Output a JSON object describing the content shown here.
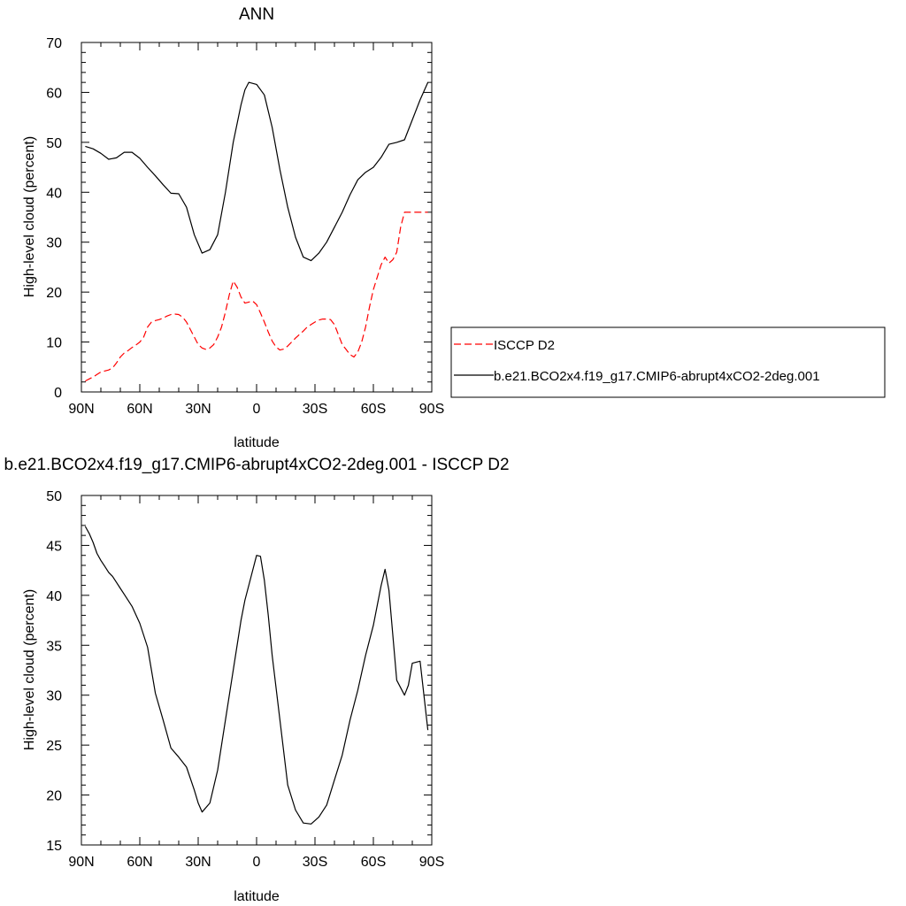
{
  "colors": {
    "model": "#000000",
    "obs": "#ff0000",
    "axis": "#000000",
    "background": "#ffffff"
  },
  "chart_data": [
    {
      "type": "line",
      "title": "ANN",
      "xlabel": "latitude",
      "ylabel": "High-level cloud (percent)",
      "xlim": [
        90,
        -90
      ],
      "ylim": [
        0,
        70
      ],
      "xticks": [
        90,
        60,
        30,
        0,
        -30,
        -60,
        -90
      ],
      "xticklabels": [
        "90N",
        "60N",
        "30N",
        "0",
        "30S",
        "60S",
        "90S"
      ],
      "yticks": [
        0,
        10,
        20,
        30,
        40,
        50,
        60,
        70
      ],
      "yticklabels": [
        "0",
        "10",
        "20",
        "30",
        "40",
        "50",
        "60",
        "70"
      ],
      "grid": false,
      "legend": {
        "placement": "right",
        "entries": [
          "ISCCP D2",
          "b.e21.BCO2x4.f19_g17.CMIP6-abrupt4xCO2-2deg.001"
        ]
      },
      "series": [
        {
          "name": "ISCCP D2",
          "style": "dashed",
          "color": "#ff0000",
          "x": [
            88,
            86,
            84,
            82,
            80,
            78,
            76,
            74,
            72,
            70,
            68,
            66,
            64,
            62,
            60,
            58,
            56,
            54,
            52,
            50,
            48,
            46,
            44,
            42,
            40,
            38,
            36,
            34,
            32,
            30,
            28,
            26,
            24,
            22,
            20,
            18,
            16,
            14,
            12,
            10,
            8,
            6,
            4,
            2,
            0,
            -2,
            -4,
            -6,
            -8,
            -10,
            -12,
            -14,
            -16,
            -18,
            -20,
            -22,
            -24,
            -26,
            -28,
            -30,
            -32,
            -34,
            -36,
            -38,
            -40,
            -42,
            -44,
            -46,
            -48,
            -50,
            -52,
            -54,
            -56,
            -58,
            -60,
            -62,
            -64,
            -66,
            -68,
            -70,
            -72,
            -74,
            -76,
            -78,
            -80,
            -82,
            -84,
            -86,
            -88
          ],
          "y": [
            2.2,
            2.6,
            3.0,
            3.5,
            4.0,
            4.2,
            4.4,
            4.8,
            5.8,
            7.0,
            7.8,
            8.3,
            8.9,
            9.4,
            10.0,
            11.0,
            13.0,
            14.0,
            14.3,
            14.5,
            14.8,
            15.2,
            15.5,
            15.6,
            15.5,
            15.0,
            14.0,
            12.5,
            11.0,
            9.5,
            8.8,
            8.5,
            8.8,
            9.5,
            11.0,
            13.0,
            16.0,
            19.5,
            22.2,
            21.0,
            19.0,
            17.8,
            18.0,
            18.2,
            17.5,
            15.8,
            14.0,
            12.0,
            10.2,
            9.0,
            8.4,
            8.6,
            9.2,
            10.0,
            10.8,
            11.5,
            12.2,
            13.0,
            13.5,
            14.0,
            14.4,
            14.6,
            14.6,
            14.5,
            13.5,
            11.5,
            9.5,
            8.5,
            7.5,
            7.0,
            8.0,
            10.0,
            13.0,
            17.0,
            20.5,
            23.0,
            25.5,
            27.0,
            25.8,
            26.5,
            28.0,
            33.0,
            36.0,
            36.0,
            36.0,
            36.0,
            36.0,
            36.0,
            36.0
          ]
        },
        {
          "name": "b.e21.BCO2x4.f19_g17.CMIP6-abrupt4xCO2-2deg.001",
          "style": "solid",
          "color": "#000000",
          "x": [
            88,
            84,
            80,
            76,
            72,
            68,
            64,
            60,
            56,
            52,
            48,
            44,
            40,
            36,
            32,
            28,
            24,
            20,
            16,
            12,
            8,
            6,
            4,
            0,
            -4,
            -8,
            -12,
            -16,
            -20,
            -24,
            -28,
            -32,
            -36,
            -40,
            -44,
            -48,
            -52,
            -56,
            -60,
            -64,
            -68,
            -72,
            -76,
            -80,
            -84,
            -88
          ],
          "y": [
            49.2,
            48.7,
            47.8,
            46.6,
            46.9,
            48.0,
            48.0,
            46.8,
            45.0,
            43.3,
            41.5,
            39.8,
            39.7,
            37.0,
            31.5,
            27.8,
            28.5,
            31.5,
            40.0,
            50.0,
            57.5,
            60.5,
            62.0,
            61.6,
            59.5,
            53.0,
            44.5,
            37.0,
            31.0,
            27.0,
            26.3,
            27.8,
            30.0,
            33.0,
            36.0,
            39.5,
            42.5,
            44.0,
            45.0,
            47.0,
            49.6,
            50.0,
            50.5,
            54.5,
            58.5,
            62.0
          ]
        }
      ]
    },
    {
      "type": "line",
      "title": "b.e21.BCO2x4.f19_g17.CMIP6-abrupt4xCO2-2deg.001 - ISCCP D2",
      "xlabel": "latitude",
      "ylabel": "High-level cloud (percent)",
      "xlim": [
        90,
        -90
      ],
      "ylim": [
        15,
        50
      ],
      "xticks": [
        90,
        60,
        30,
        0,
        -30,
        -60,
        -90
      ],
      "xticklabels": [
        "90N",
        "60N",
        "30N",
        "0",
        "30S",
        "60S",
        "90S"
      ],
      "yticks": [
        15,
        20,
        25,
        30,
        35,
        40,
        45,
        50
      ],
      "yticklabels": [
        "15",
        "20",
        "25",
        "30",
        "35",
        "40",
        "45",
        "50"
      ],
      "grid": false,
      "series": [
        {
          "style": "solid",
          "color": "#000000",
          "x": [
            88,
            86,
            84,
            82,
            80,
            78,
            76,
            74,
            72,
            70,
            68,
            64,
            60,
            56,
            54,
            52,
            48,
            44,
            40,
            36,
            32,
            30,
            28,
            24,
            20,
            16,
            12,
            8,
            6,
            4,
            2,
            0,
            -2,
            -4,
            -6,
            -8,
            -12,
            -16,
            -20,
            -24,
            -28,
            -32,
            -36,
            -40,
            -44,
            -48,
            -52,
            -56,
            -60,
            -62,
            -64,
            -66,
            -68,
            -72,
            -76,
            -78,
            -80,
            -84,
            -88
          ],
          "y": [
            46.9,
            46.2,
            45.3,
            44.2,
            43.5,
            42.9,
            42.3,
            41.9,
            41.3,
            40.7,
            40.1,
            38.9,
            37.2,
            34.8,
            32.5,
            30.2,
            27.5,
            24.7,
            23.8,
            22.8,
            20.5,
            19.2,
            18.3,
            19.2,
            22.5,
            27.5,
            32.5,
            37.5,
            39.5,
            41.0,
            42.5,
            44.0,
            43.9,
            41.5,
            38.0,
            34.0,
            27.5,
            21.0,
            18.5,
            17.2,
            17.1,
            17.8,
            19.0,
            21.5,
            24.0,
            27.5,
            30.5,
            34.0,
            37.0,
            39.0,
            41.0,
            42.6,
            40.5,
            31.5,
            30.0,
            31.0,
            33.2,
            33.4,
            26.5
          ]
        }
      ]
    }
  ]
}
